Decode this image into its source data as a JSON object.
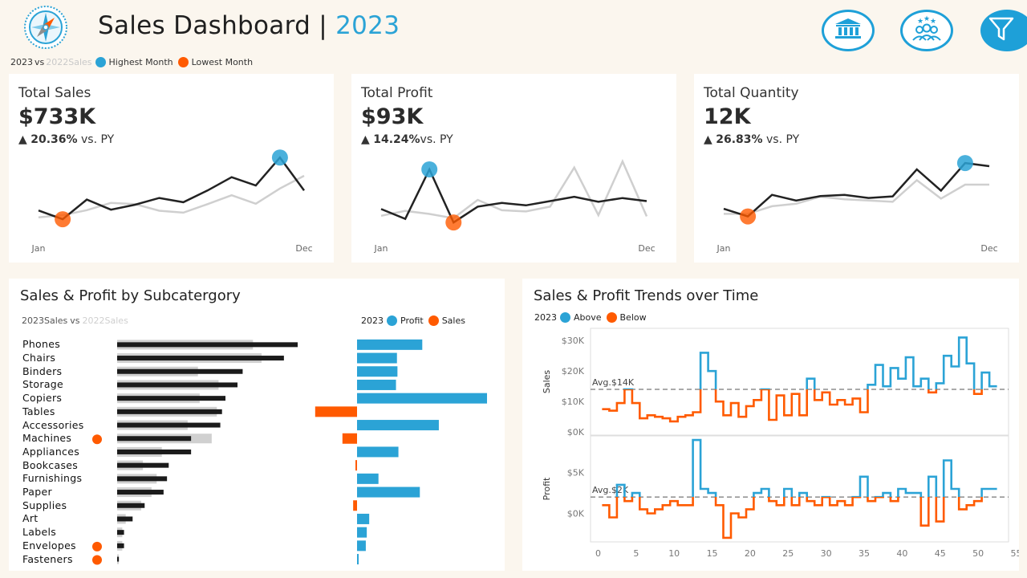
{
  "header": {
    "title": "Sales Dashboard",
    "separator": "|",
    "year": "2023"
  },
  "top_legend": {
    "cur": "2023",
    "vs": "vs",
    "prev": "2022",
    "metric": "Sales",
    "high": "Highest Month",
    "low": "Lowest Month"
  },
  "colors": {
    "accent_blue": "#2ba3d6",
    "accent_orange": "#ff5a00",
    "line_current": "#222222",
    "line_previous": "#cfcfcf",
    "background": "#fbf6ee"
  },
  "icons": [
    "compass-logo-icon",
    "bank-icon",
    "customers-icon",
    "filter-icon"
  ],
  "kpis": [
    {
      "title": "Total Sales",
      "value": "$733K",
      "arrow": "▲",
      "delta": "20.36%",
      "vs": "vs. PY",
      "x_start": "Jan",
      "x_end": "Dec",
      "current": [
        236,
        176,
        310,
        241,
        275,
        321,
        292,
        372,
        463,
        406,
        597,
        372
      ],
      "previous": [
        189,
        204,
        238,
        288,
        279,
        234,
        221,
        279,
        340,
        282,
        386,
        472
      ],
      "ylim": [
        100,
        620
      ],
      "high_index": 10,
      "low_index": 1
    },
    {
      "title": "Total Profit",
      "value": "$93K",
      "arrow": "▲",
      "delta": "14.24%",
      "vs": "vs. PY",
      "x_start": "Jan",
      "x_end": "Dec",
      "current": [
        5.0,
        3.4,
        11.5,
        2.8,
        5.4,
        6.0,
        5.6,
        6.3,
        7.0,
        6.2,
        6.8,
        6.3
      ],
      "previous": [
        3.9,
        4.7,
        4.2,
        3.5,
        6.5,
        4.8,
        4.6,
        5.4,
        11.8,
        4.0,
        12.8,
        3.8
      ],
      "ylim": [
        1.5,
        14
      ],
      "high_index": 2,
      "low_index": 3
    },
    {
      "title": "Total Quantity",
      "value": "12K",
      "arrow": "▲",
      "delta": "26.83%",
      "vs": "vs. PY",
      "x_start": "Jan",
      "x_end": "Dec",
      "current": [
        640,
        520,
        860,
        770,
        840,
        860,
        810,
        835,
        1260,
        925,
        1360,
        1310
      ],
      "previous": [
        560,
        560,
        680,
        720,
        830,
        790,
        770,
        750,
        1090,
        800,
        1020,
        1020
      ],
      "ylim": [
        300,
        1500
      ],
      "high_index": 10,
      "low_index": 1
    }
  ],
  "subcategory": {
    "title": "Sales & Profit by Subcatergory",
    "legend_left": {
      "cur": "2023",
      "metric": "Sales",
      "vs": "vs",
      "prev": "2022",
      "metric2": "Sales"
    },
    "legend_right": {
      "year": "2023",
      "profit": "Profit",
      "sales": "Sales"
    },
    "chart_data": {
      "type": "bar",
      "categories": [
        "Phones",
        "Chairs",
        "Binders",
        "Storage",
        "Copiers",
        "Tables",
        "Accessories",
        "Machines",
        "Appliances",
        "Bookcases",
        "Furnishings",
        "Paper",
        "Supplies",
        "Art",
        "Labels",
        "Envelopes",
        "Fasteners"
      ],
      "series": [
        {
          "name": "2023 Sales",
          "values": [
            105,
            97,
            73,
            70,
            63,
            61,
            60,
            43,
            43,
            30,
            29,
            27,
            16,
            9,
            4,
            4,
            1
          ]
        },
        {
          "name": "2022 Sales",
          "values": [
            79,
            84,
            47,
            59,
            48,
            58,
            41,
            55,
            26,
            15,
            23,
            20,
            14,
            5,
            3,
            3,
            1
          ]
        },
        {
          "name": "2023 Profit",
          "values": [
            13.4,
            8.2,
            8.3,
            8.0,
            26.7,
            -8.6,
            16.8,
            -3.0,
            8.5,
            -0.3,
            4.4,
            12.9,
            -0.8,
            2.5,
            2.0,
            1.8,
            0.3
          ]
        }
      ],
      "low_flags": [
        "Machines",
        "Envelopes",
        "Fasteners"
      ]
    }
  },
  "trends": {
    "title": "Sales & Profit Trends over Time",
    "legend": {
      "year": "2023",
      "above": "Above",
      "below": "Below"
    },
    "chart_data": {
      "type": "line",
      "x": [
        1,
        2,
        3,
        4,
        5,
        6,
        7,
        8,
        9,
        10,
        11,
        12,
        13,
        14,
        15,
        16,
        17,
        18,
        19,
        20,
        21,
        22,
        23,
        24,
        25,
        26,
        27,
        28,
        29,
        30,
        31,
        32,
        33,
        34,
        35,
        36,
        37,
        38,
        39,
        40,
        41,
        42,
        43,
        44,
        45,
        46,
        47,
        48,
        49,
        50,
        51,
        52
      ],
      "xticks": [
        0,
        5,
        10,
        15,
        20,
        25,
        30,
        35,
        40,
        45,
        50,
        55
      ],
      "xlim": [
        -1,
        54
      ],
      "sales": {
        "ylabel": "Sales",
        "ylim": [
          -1,
          34
        ],
        "yticks": [
          0,
          10,
          20,
          30
        ],
        "yticklabels": [
          "$0K",
          "$10K",
          "$20K",
          "$30K"
        ],
        "avg": 14,
        "avg_label": "Avg.$14K",
        "values": [
          7.5,
          7,
          9.5,
          14,
          9.5,
          4.5,
          5.5,
          5,
          4.5,
          3.5,
          5,
          5.5,
          6.5,
          26,
          20,
          10,
          5.5,
          9.5,
          5,
          8.5,
          10.5,
          14,
          4,
          12,
          5.5,
          12.5,
          5.5,
          17.5,
          10.5,
          13,
          9,
          10.5,
          9,
          11,
          6.5,
          15.5,
          22,
          15,
          21,
          17.5,
          24.5,
          15,
          17.5,
          13,
          16,
          25,
          21.5,
          31,
          22.5,
          12.5,
          19.5,
          15
        ]
      },
      "profit": {
        "ylabel": "Profit",
        "ylim": [
          -3.5,
          9.5
        ],
        "yticks": [
          0,
          5
        ],
        "yticklabels": [
          "$0K",
          "$5K"
        ],
        "avg": 2,
        "avg_label": "Avg.$2K",
        "values": [
          1,
          -0.5,
          3.5,
          1.5,
          2.5,
          0.5,
          0,
          0.5,
          1,
          1.5,
          1,
          1,
          9,
          3,
          2.5,
          1,
          -3,
          0,
          -0.5,
          0.5,
          2.5,
          3,
          1.5,
          1,
          3,
          1,
          2.5,
          1.5,
          1,
          2,
          1,
          1.5,
          1,
          2,
          4.5,
          1.5,
          2,
          2.5,
          1.5,
          3,
          2.5,
          2.5,
          -1.5,
          4.5,
          -1,
          6.5,
          3,
          0.5,
          1,
          1.5,
          3,
          3
        ]
      }
    }
  }
}
